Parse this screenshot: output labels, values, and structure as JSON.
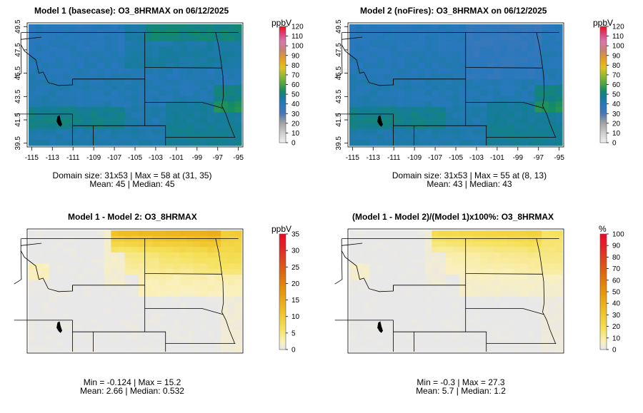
{
  "panels": [
    {
      "title": "Model 1 (basecase): O3_8HRMAX on 06/12/2025",
      "colorbar": {
        "unit": "ppbV",
        "max": 120,
        "step": 10,
        "ticks": [
          "0",
          "10",
          "20",
          "30",
          "40",
          "50",
          "60",
          "70",
          "80",
          "90",
          "100",
          "110",
          "120"
        ]
      },
      "axes": {
        "x_ticks": [
          "-115",
          "-113",
          "-111",
          "-109",
          "-107",
          "-105",
          "-103",
          "-101",
          "-99",
          "-97",
          "-95"
        ],
        "y_ticks": [
          "39.5",
          "41.5",
          "43.5",
          "45.5",
          "47.5",
          "49.5"
        ]
      },
      "footer": {
        "line1": "Domain size: 31x53 | Max = 58 at (31, 35)",
        "line2": "Mean: 45 |  Median: 45"
      },
      "field": {
        "kind": "ozone",
        "mean": 45,
        "max": 58,
        "nf": false
      }
    },
    {
      "title": "Model 2 (noFires): O3_8HRMAX on 06/12/2025",
      "colorbar": {
        "unit": "ppbV",
        "max": 120,
        "step": 10,
        "ticks": [
          "0",
          "10",
          "20",
          "30",
          "40",
          "50",
          "60",
          "70",
          "80",
          "90",
          "100",
          "110",
          "120"
        ]
      },
      "axes": {
        "x_ticks": [
          "-115",
          "-113",
          "-111",
          "-109",
          "-107",
          "-105",
          "-103",
          "-101",
          "-99",
          "-97",
          "-95"
        ],
        "y_ticks": [
          "39.5",
          "41.5",
          "43.5",
          "45.5",
          "47.5",
          "49.5"
        ]
      },
      "footer": {
        "line1": "Domain size: 31x53 | Max = 55 at (8, 13)",
        "line2": "Mean: 43 |  Median: 43"
      },
      "field": {
        "kind": "ozone",
        "mean": 43,
        "max": 55,
        "nf": true
      }
    },
    {
      "title": "Model 1 - Model 2: O3_8HRMAX",
      "colorbar": {
        "unit": "ppbV",
        "max": 35,
        "step": 5,
        "ticks": [
          "0",
          "5",
          "10",
          "15",
          "20",
          "25",
          "30",
          "35"
        ]
      },
      "footer": {
        "line1": "Min = -0.124 | Max = 15.2",
        "line2": "Mean: 2.66 |  Median: 0.532"
      },
      "field": {
        "kind": "diff",
        "min": -0.124,
        "max": 15.2
      }
    },
    {
      "title": "(Model 1 - Model 2)/(Model 1)x100%: O3_8HRMAX",
      "colorbar": {
        "unit": "%",
        "max": 100,
        "step": 10,
        "ticks": [
          "0",
          "10",
          "20",
          "30",
          "40",
          "50",
          "60",
          "70",
          "80",
          "90",
          "100"
        ]
      },
      "footer": {
        "line1": "Min = -0.3 | Max = 27.3",
        "line2": "Mean: 5.7 |  Median: 1.2"
      },
      "field": {
        "kind": "pct",
        "min": -0.3,
        "max": 27.3
      }
    }
  ]
}
